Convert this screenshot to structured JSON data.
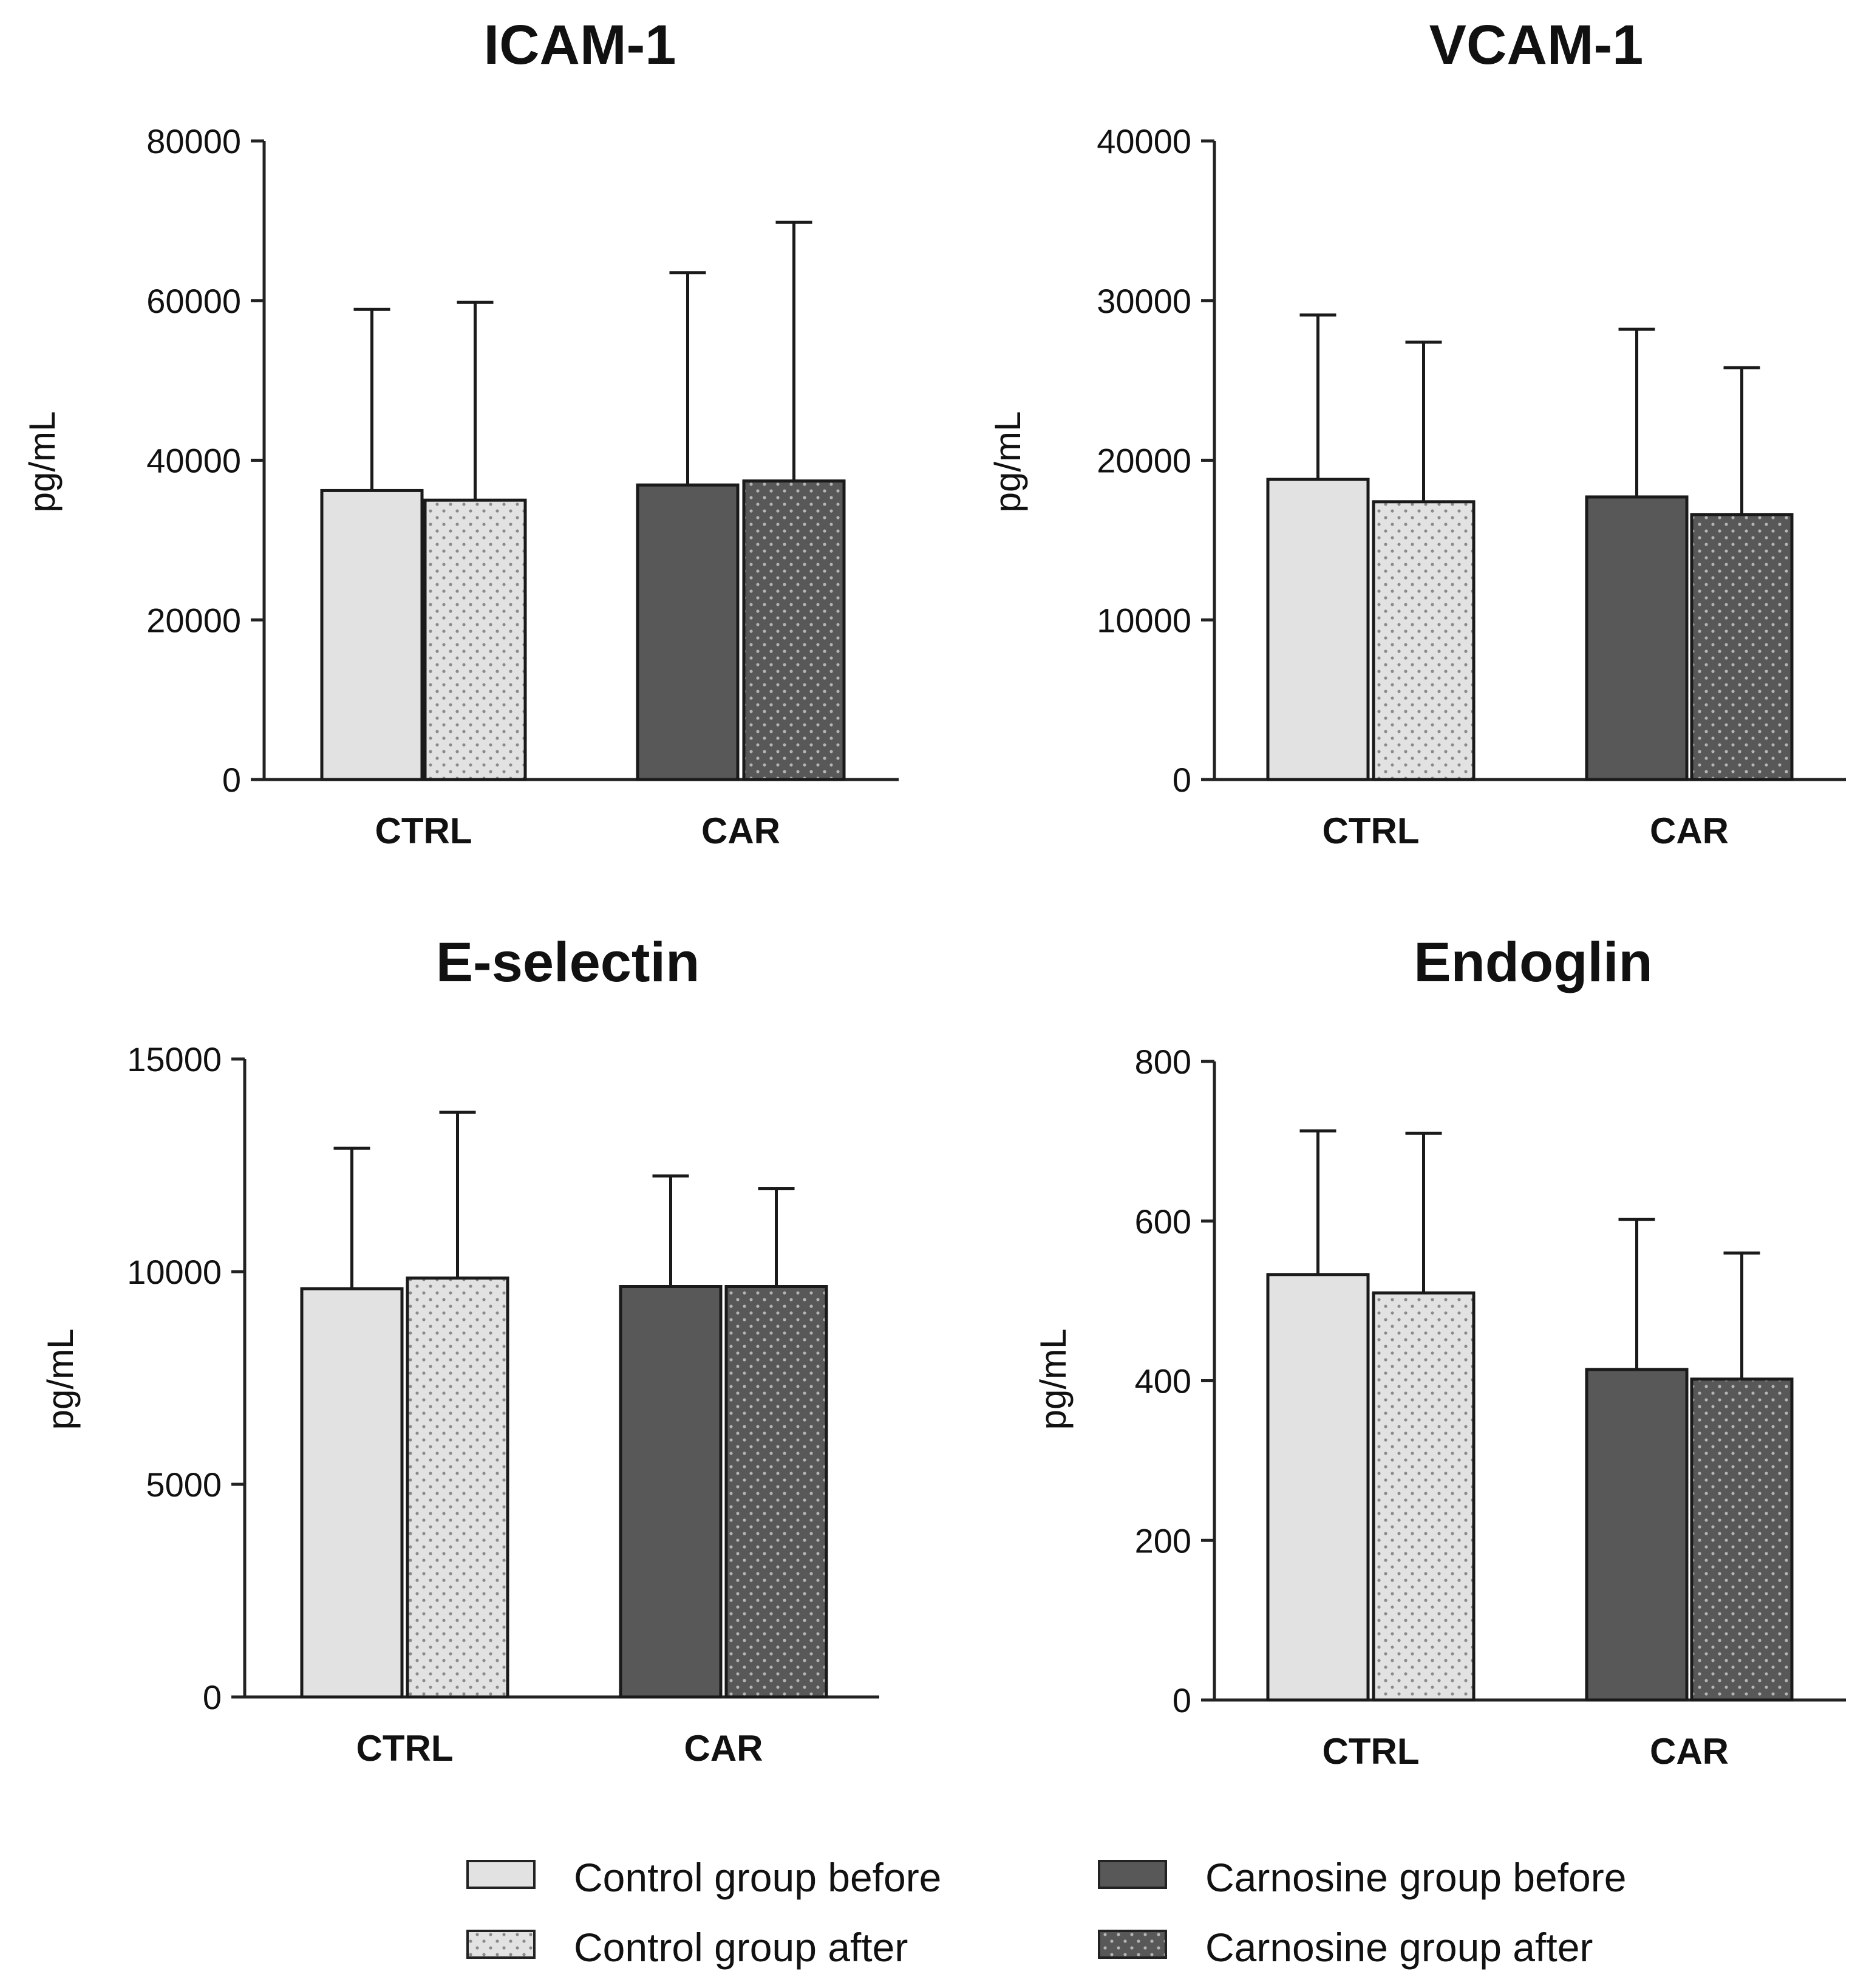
{
  "legend": [
    {
      "label": "Control group before",
      "fill": "#e2e2e2",
      "pattern": "none"
    },
    {
      "label": "Control group after",
      "fill": "#e2e2e2",
      "pattern": "dots-dark"
    },
    {
      "label": "Carnosine group before",
      "fill": "#585858",
      "pattern": "none"
    },
    {
      "label": "Carnosine group after",
      "fill": "#585858",
      "pattern": "dots-light"
    }
  ],
  "colors": {
    "light_bar": "#e2e2e2",
    "dark_bar": "#585858",
    "axis": "#222222"
  },
  "chart_data": [
    {
      "type": "bar",
      "title": "ICAM-1",
      "ylabel": "pg/mL",
      "xlabel": "",
      "categories": [
        "CTRL",
        "CAR"
      ],
      "ylim": [
        0,
        80000
      ],
      "yticks": [
        "0",
        "20000",
        "40000",
        "60000",
        "80000"
      ],
      "bars": [
        {
          "category": "CTRL",
          "series": "Control group before",
          "value": 36200,
          "error": 58900
        },
        {
          "category": "CTRL",
          "series": "Control group after",
          "value": 35000,
          "error": 59800
        },
        {
          "category": "CAR",
          "series": "Carnosine group before",
          "value": 36900,
          "error": 63500
        },
        {
          "category": "CAR",
          "series": "Carnosine group after",
          "value": 37400,
          "error": 69800
        }
      ]
    },
    {
      "type": "bar",
      "title": "VCAM-1",
      "ylabel": "pg/mL",
      "xlabel": "",
      "categories": [
        "CTRL",
        "CAR"
      ],
      "ylim": [
        0,
        40000
      ],
      "yticks": [
        "0",
        "10000",
        "20000",
        "30000",
        "40000"
      ],
      "bars": [
        {
          "category": "CTRL",
          "series": "Control group before",
          "value": 18800,
          "error": 29100
        },
        {
          "category": "CTRL",
          "series": "Control group after",
          "value": 17400,
          "error": 27400
        },
        {
          "category": "CAR",
          "series": "Carnosine group before",
          "value": 17700,
          "error": 28200
        },
        {
          "category": "CAR",
          "series": "Carnosine group after",
          "value": 16600,
          "error": 25800
        }
      ]
    },
    {
      "type": "bar",
      "title": "E-selectin",
      "ylabel": "pg/mL",
      "xlabel": "",
      "categories": [
        "CTRL",
        "CAR"
      ],
      "ylim": [
        0,
        15000
      ],
      "yticks": [
        "0",
        "5000",
        "10000",
        "15000"
      ],
      "bars": [
        {
          "category": "CTRL",
          "series": "Control group before",
          "value": 9600,
          "error": 12900
        },
        {
          "category": "CTRL",
          "series": "Control group after",
          "value": 9850,
          "error": 13750
        },
        {
          "category": "CAR",
          "series": "Carnosine group before",
          "value": 9650,
          "error": 12250
        },
        {
          "category": "CAR",
          "series": "Carnosine group after",
          "value": 9650,
          "error": 11950
        }
      ]
    },
    {
      "type": "bar",
      "title": "Endoglin",
      "ylabel": "pg/mL",
      "xlabel": "",
      "categories": [
        "CTRL",
        "CAR"
      ],
      "ylim": [
        0,
        800
      ],
      "yticks": [
        "0",
        "200",
        "400",
        "600",
        "800"
      ],
      "bars": [
        {
          "category": "CTRL",
          "series": "Control group before",
          "value": 533,
          "error": 713
        },
        {
          "category": "CTRL",
          "series": "Control group after",
          "value": 510,
          "error": 710
        },
        {
          "category": "CAR",
          "series": "Carnosine group before",
          "value": 414,
          "error": 602
        },
        {
          "category": "CAR",
          "series": "Carnosine group after",
          "value": 402,
          "error": 560
        }
      ]
    }
  ]
}
